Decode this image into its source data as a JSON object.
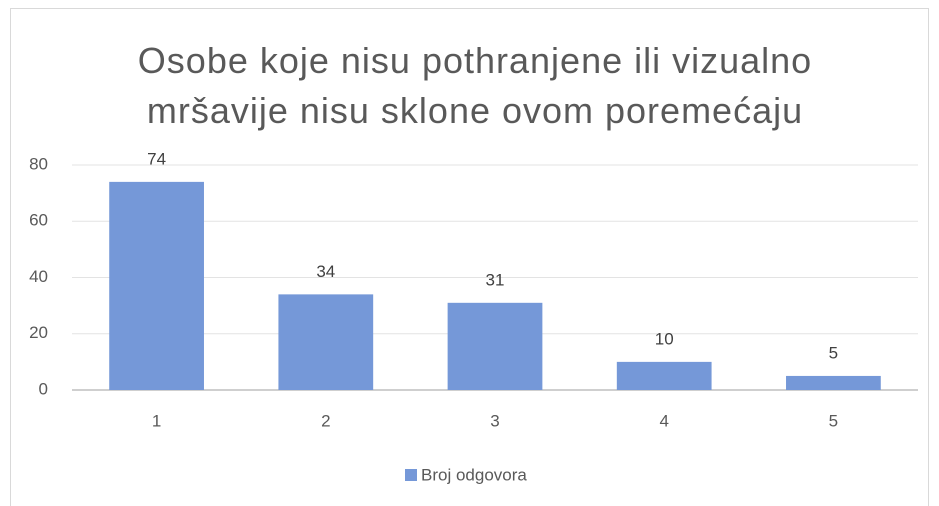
{
  "chart_data": {
    "type": "bar",
    "title": "Osobe koje nisu pothranjene ili vizualno mršavije nisu sklone ovom poremećaju",
    "categories": [
      "1",
      "2",
      "3",
      "4",
      "5"
    ],
    "series": [
      {
        "name": "Broj odgovora",
        "color": "#7598d8",
        "values": [
          74,
          34,
          31,
          10,
          5
        ]
      }
    ],
    "ylim": [
      0,
      80
    ],
    "yticks": [
      0,
      20,
      40,
      60,
      80
    ],
    "grid": true,
    "legend": "bottom"
  }
}
